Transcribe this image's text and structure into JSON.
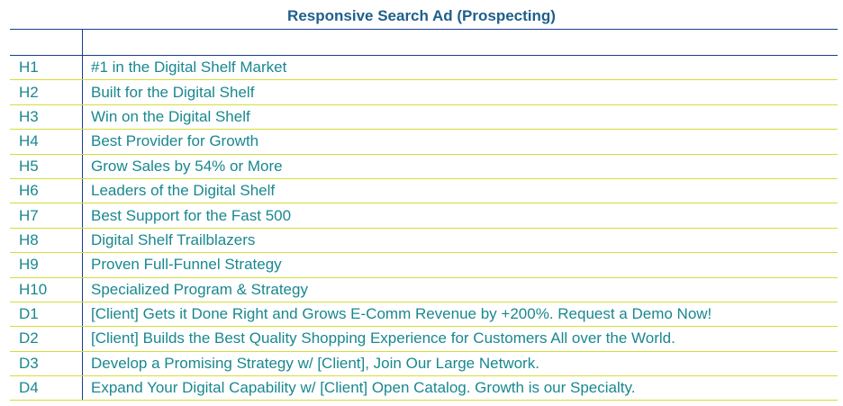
{
  "title": "Responsive Search Ad (Prospecting)",
  "header": {
    "code": "",
    "text": ""
  },
  "rows": [
    {
      "code": "H1",
      "text": "#1 in the Digital Shelf Market"
    },
    {
      "code": "H2",
      "text": "Built for the Digital Shelf"
    },
    {
      "code": "H3",
      "text": "Win on the Digital Shelf"
    },
    {
      "code": "H4",
      "text": "Best Provider for Growth"
    },
    {
      "code": "H5",
      "text": "Grow Sales by 54% or More"
    },
    {
      "code": "H6",
      "text": "Leaders of the Digital Shelf"
    },
    {
      "code": "H7",
      "text": "Best Support for the Fast 500"
    },
    {
      "code": "H8",
      "text": "Digital Shelf Trailblazers"
    },
    {
      "code": "H9",
      "text": "Proven Full-Funnel Strategy"
    },
    {
      "code": "H10",
      "text": "Specialized Program & Strategy"
    },
    {
      "code": "D1",
      "text": "[Client] Gets it Done Right and Grows E-Comm Revenue by +200%. Request a Demo Now!"
    },
    {
      "code": "D2",
      "text": "[Client] Builds the Best Quality Shopping Experience for Customers All over the World."
    },
    {
      "code": "D3",
      "text": "Develop a Promising Strategy w/ [Client], Join Our Large Network."
    },
    {
      "code": "D4",
      "text": "Expand Your Digital Capability w/ [Client] Open Catalog. Growth is our Specialty."
    }
  ],
  "colors": {
    "title": "#1f5f8b",
    "text": "#19888f",
    "row_divider": "#d6dd3a",
    "header_border": "#1a3d8f"
  }
}
